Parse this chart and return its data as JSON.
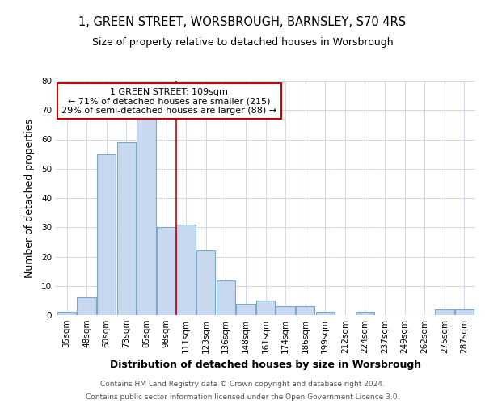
{
  "title1": "1, GREEN STREET, WORSBROUGH, BARNSLEY, S70 4RS",
  "title2": "Size of property relative to detached houses in Worsbrough",
  "xlabel": "Distribution of detached houses by size in Worsbrough",
  "ylabel": "Number of detached properties",
  "categories": [
    "35sqm",
    "48sqm",
    "60sqm",
    "73sqm",
    "85sqm",
    "98sqm",
    "111sqm",
    "123sqm",
    "136sqm",
    "148sqm",
    "161sqm",
    "174sqm",
    "186sqm",
    "199sqm",
    "212sqm",
    "224sqm",
    "237sqm",
    "249sqm",
    "262sqm",
    "275sqm",
    "287sqm"
  ],
  "values": [
    1,
    6,
    55,
    59,
    67,
    30,
    31,
    22,
    12,
    4,
    5,
    3,
    3,
    1,
    0,
    1,
    0,
    0,
    0,
    2,
    2
  ],
  "bar_color": "#c8d8ee",
  "bar_edge_color": "#7aaaca",
  "highlight_index": 5,
  "highlight_line_color": "#cc0000",
  "annotation_text": "1 GREEN STREET: 109sqm\n← 71% of detached houses are smaller (215)\n29% of semi-detached houses are larger (88) →",
  "annotation_box_color": "#ffffff",
  "annotation_box_edge": "#cc0000",
  "ylim": [
    0,
    80
  ],
  "yticks": [
    0,
    10,
    20,
    30,
    40,
    50,
    60,
    70,
    80
  ],
  "footer1": "Contains HM Land Registry data © Crown copyright and database right 2024.",
  "footer2": "Contains public sector information licensed under the Open Government Licence 3.0.",
  "bg_color": "#ffffff",
  "plot_bg_color": "#ffffff",
  "title1_fontsize": 10.5,
  "title2_fontsize": 9,
  "axis_label_fontsize": 9,
  "tick_fontsize": 7.5,
  "footer_fontsize": 6.5
}
